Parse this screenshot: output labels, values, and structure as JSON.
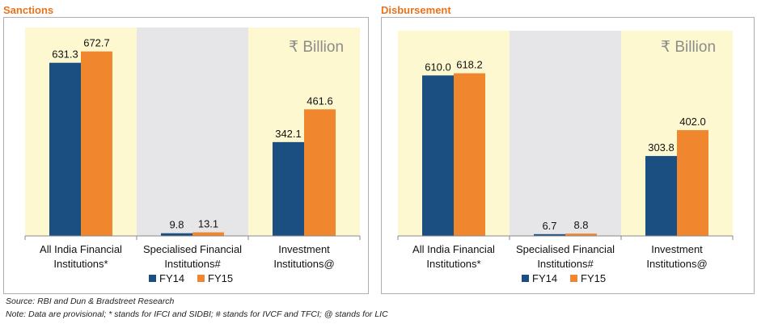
{
  "colors": {
    "fy14": "#1b4f82",
    "fy15": "#f0862d",
    "band_light": "#fdf8d0",
    "band_grey": "#e6e6e8",
    "title": "#e8731c",
    "unit": "#8c8c8c"
  },
  "chart_data": [
    {
      "type": "bar",
      "title": "Sanctions",
      "unit_label": "₹ Billion",
      "categories": [
        [
          "All India Financial",
          "Institutions*"
        ],
        [
          "Specialised Financial",
          "Institutions#"
        ],
        [
          "Investment",
          "Institutions@"
        ]
      ],
      "series": [
        {
          "name": "FY14",
          "values": [
            631.3,
            9.8,
            342.1
          ],
          "labels": [
            "631.3",
            "9.8",
            "342.1"
          ]
        },
        {
          "name": "FY15",
          "values": [
            672.7,
            13.1,
            461.6
          ],
          "labels": [
            "672.7",
            "13.1",
            "461.6"
          ]
        }
      ],
      "ylim": [
        0,
        760
      ],
      "legend": "bottom-center",
      "grid": false
    },
    {
      "type": "bar",
      "title": "Disbursement",
      "unit_label": "₹ Billion",
      "categories": [
        [
          "All India Financial",
          "Institutions*"
        ],
        [
          "Specialised Financial",
          "Institutions#"
        ],
        [
          "Investment",
          "Institutions@"
        ]
      ],
      "series": [
        {
          "name": "FY14",
          "values": [
            610.0,
            6.7,
            303.8
          ],
          "labels": [
            "610.0",
            "6.7",
            "303.8"
          ]
        },
        {
          "name": "FY15",
          "values": [
            618.2,
            8.8,
            402.0
          ],
          "labels": [
            "618.2",
            "8.8",
            "402.0"
          ]
        }
      ],
      "ylim": [
        0,
        780
      ],
      "legend": "bottom-center",
      "grid": false
    }
  ],
  "footnotes": {
    "source": "Source: RBI and Dun & Bradstreet Research",
    "note": "Note: Data are provisional; * stands for IFCI and SIDBI; # stands for IVCF and TFCI; @ stands for LIC"
  }
}
